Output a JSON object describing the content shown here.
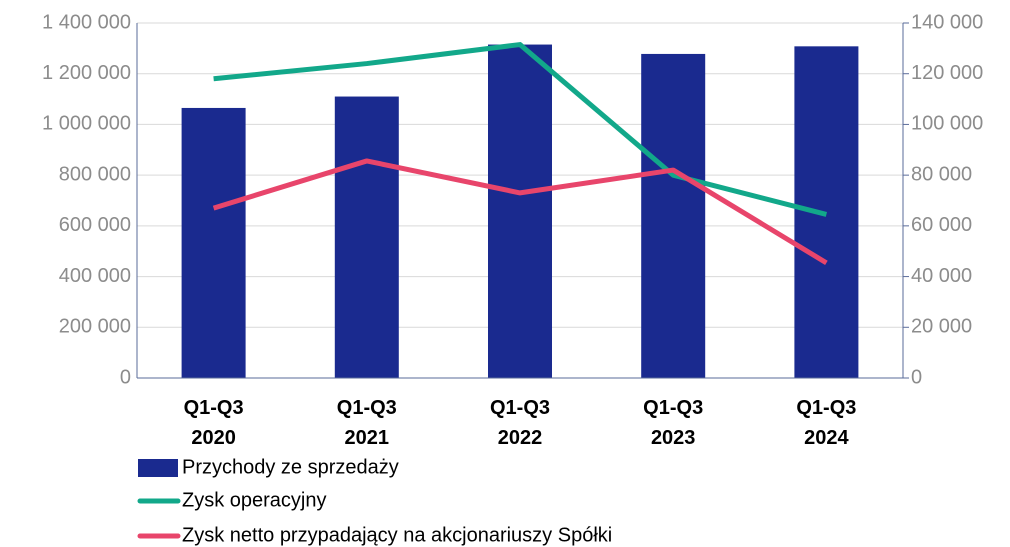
{
  "chart_data": {
    "type": "bar_line",
    "categories": [
      "Q1-Q3 2020",
      "Q1-Q3 2021",
      "Q1-Q3 2022",
      "Q1-Q3 2023",
      "Q1-Q3 2024"
    ],
    "series": [
      {
        "name": "Przychody ze sprzedaży",
        "color": "#1a2a8f",
        "type": "bar",
        "values": [
          1065000,
          1110000,
          1315000,
          1278000,
          1308000
        ]
      },
      {
        "name": "Zysk operacyjny",
        "color": "#12a88a",
        "type": "line",
        "axis": "y2",
        "values": [
          118000,
          124000,
          131500,
          80000,
          64500
        ]
      },
      {
        "name": "Zysk netto przypadający na akcjonariuszy Spółki",
        "color": "#e8456b",
        "type": "line",
        "axis": "y2",
        "values": [
          67000,
          85600,
          73000,
          82000,
          45400
        ]
      }
    ],
    "ylim": [
      0,
      1400000
    ],
    "yticks": [
      0,
      {
        "value": 200000,
        "label": "200 000"
      },
      {
        "value": 400000,
        "label": "400 000"
      },
      {
        "value": 600000,
        "label": "600 000"
      },
      {
        "value": 800000,
        "label": "800 000"
      },
      {
        "value": 1000000,
        "label": "1 000 000"
      },
      {
        "value": 1200000,
        "label": "1 200 000"
      },
      {
        "value": 1400000,
        "label": "1 400 000"
      }
    ],
    "y2lim": [
      0,
      140000
    ],
    "y2ticks": [
      0,
      {
        "value": 20000,
        "label": "20 000"
      },
      {
        "value": 40000,
        "label": "40 000"
      },
      {
        "value": 60000,
        "label": "60 000"
      },
      {
        "value": 80000,
        "label": "80 000"
      },
      {
        "value": 100000,
        "label": "100 000"
      },
      {
        "value": 120000,
        "label": "120 000"
      },
      {
        "value": 140000,
        "label": "140 000"
      }
    ],
    "grid": true
  }
}
